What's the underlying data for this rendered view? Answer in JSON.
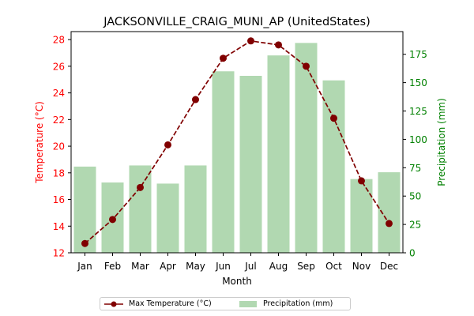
{
  "chart_data": {
    "type": "bar+line",
    "title": "JACKSONVILLE_CRAIG_MUNI_AP (UnitedStates)",
    "xlabel": "Month",
    "ylabel_left": "Temperature (°C)",
    "ylabel_right": "Precipitation (mm)",
    "categories": [
      "Jan",
      "Feb",
      "Mar",
      "Apr",
      "May",
      "Jun",
      "Jul",
      "Aug",
      "Sep",
      "Oct",
      "Nov",
      "Dec"
    ],
    "ylim_left": [
      12,
      28.6
    ],
    "ylim_right": [
      0,
      195
    ],
    "yticks_left": [
      12,
      14,
      16,
      18,
      20,
      22,
      24,
      26,
      28
    ],
    "yticks_right": [
      0,
      25,
      50,
      75,
      100,
      125,
      150,
      175
    ],
    "series": [
      {
        "name": "Max Temperature (°C)",
        "kind": "line",
        "axis": "left",
        "color": "#800000",
        "values": [
          12.7,
          14.5,
          16.9,
          20.1,
          23.5,
          26.6,
          27.9,
          27.6,
          26.0,
          22.1,
          17.4,
          14.2
        ]
      },
      {
        "name": "Precipitation (mm)",
        "kind": "bar",
        "axis": "right",
        "color": "#b1d8b1",
        "values": [
          76,
          62,
          77,
          61,
          77,
          160,
          156,
          174,
          185,
          152,
          65,
          71
        ]
      }
    ],
    "axis_colors": {
      "left": "#ff0000",
      "right": "#008000"
    },
    "legend_position": "bottom-center",
    "grid": false
  }
}
